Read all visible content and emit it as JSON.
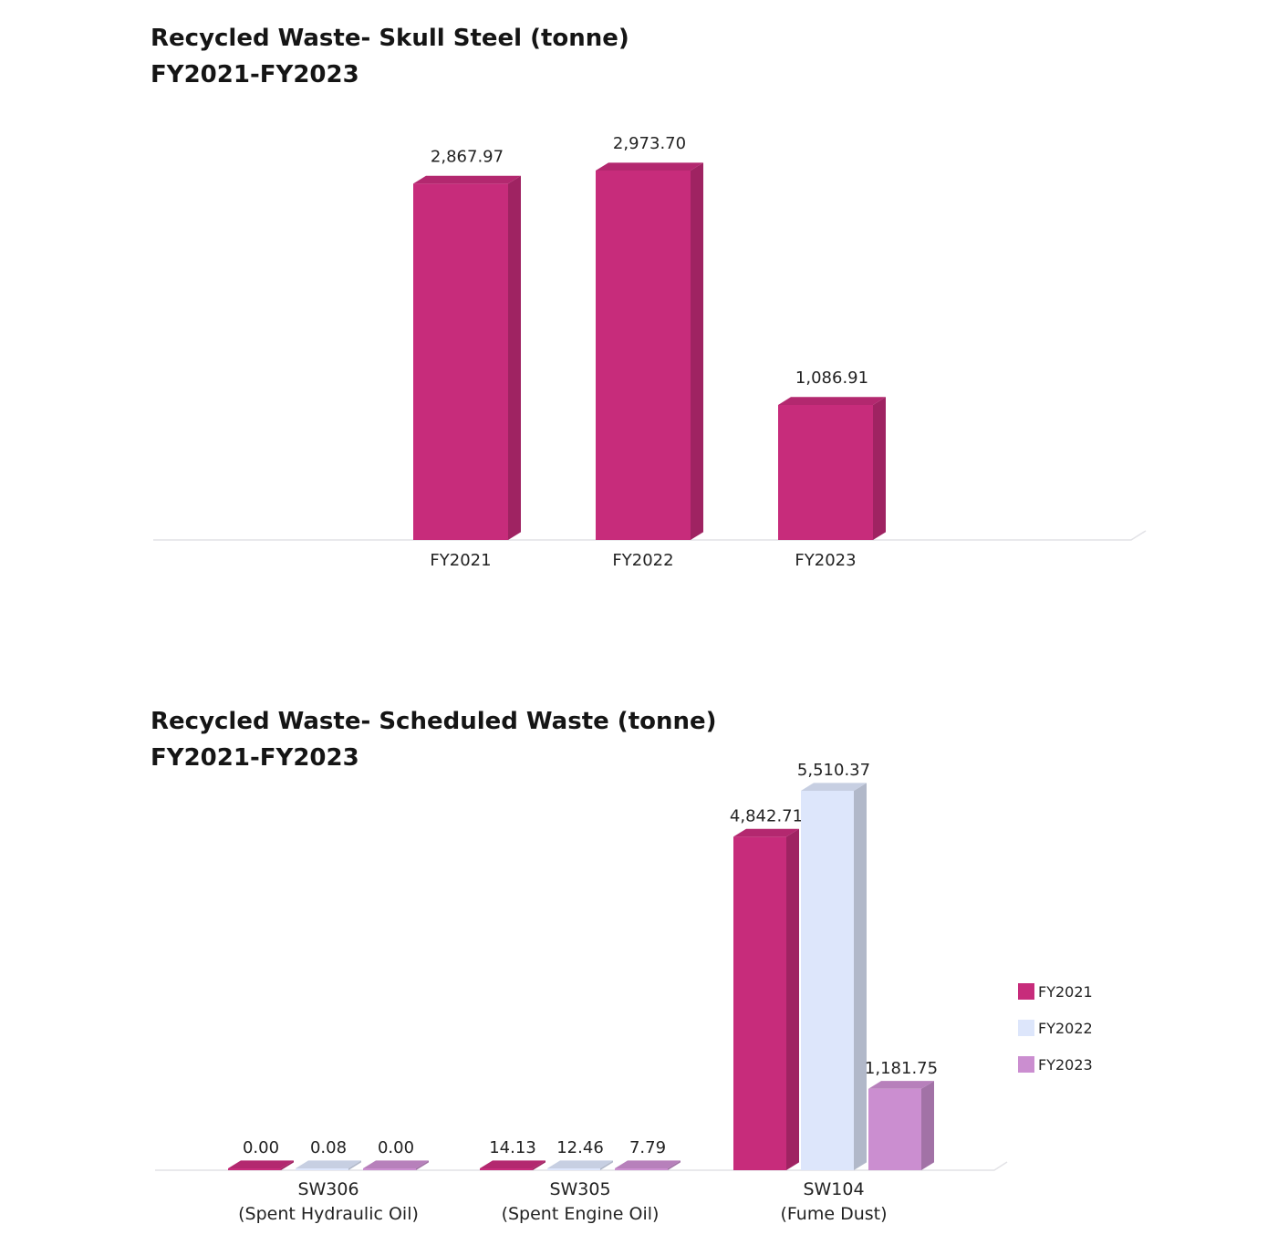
{
  "colors": {
    "FY2021": "#c72c7b",
    "FY2022": "#dde6fb",
    "FY2023": "#cb8ed0",
    "baseline": "#e2e2e6"
  },
  "chart_data": [
    {
      "type": "bar",
      "title": "Recycled Waste- Skull Steel (tonne)",
      "subtitle": "FY2021-FY2023",
      "categories": [
        "FY2021",
        "FY2022",
        "FY2023"
      ],
      "series": [
        {
          "values": [
            2867.97,
            2973.7,
            1086.91
          ]
        }
      ],
      "data_labels": [
        "2,867.97",
        "2,973.70",
        "1,086.91"
      ],
      "ylim": [
        0,
        3000
      ],
      "grid": false,
      "legend": "none"
    },
    {
      "type": "bar",
      "title": "Recycled Waste- Scheduled Waste (tonne)",
      "subtitle": "FY2021-FY2023",
      "categories": [
        [
          "SW306",
          "(Spent Hydraulic Oil)"
        ],
        [
          "SW305",
          "(Spent Engine Oil)"
        ],
        [
          "SW104",
          "(Fume Dust)"
        ]
      ],
      "series": [
        {
          "name": "FY2021",
          "values": [
            0.0,
            14.13,
            4842.71
          ],
          "labels": [
            "0.00",
            "14.13",
            "4,842.71"
          ]
        },
        {
          "name": "FY2022",
          "values": [
            0.08,
            12.46,
            5510.37
          ],
          "labels": [
            "0.08",
            "12.46",
            "5,510.37"
          ]
        },
        {
          "name": "FY2023",
          "values": [
            0.0,
            7.79,
            1181.75
          ],
          "labels": [
            "0.00",
            "7.79",
            "1,181.75"
          ]
        }
      ],
      "ylim": [
        0,
        5500
      ],
      "grid": false,
      "legend": "right"
    }
  ]
}
